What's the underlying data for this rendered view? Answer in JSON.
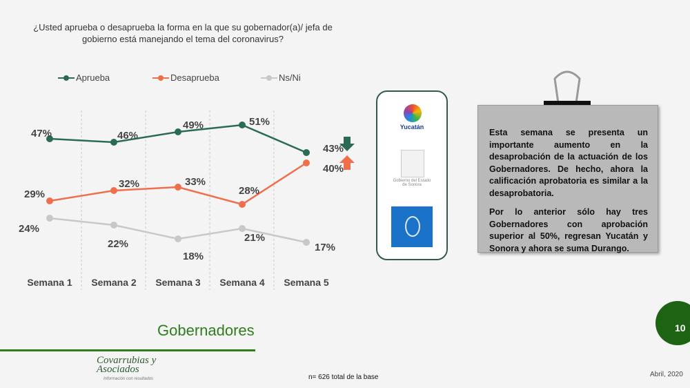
{
  "chart_data": {
    "type": "line",
    "title": "¿Usted aprueba o desaprueba la forma en la que su gobernador(a)/ jefa de gobierno está manejando el tema del coronavirus?",
    "categories": [
      "Semana 1",
      "Semana 2",
      "Semana 3",
      "Semana 4",
      "Semana 5"
    ],
    "series": [
      {
        "name": "Aprueba",
        "color": "#2b6a53",
        "values": [
          47,
          46,
          49,
          51,
          43
        ],
        "labels": [
          "47%",
          "46%",
          "49%",
          "51%",
          "43%"
        ]
      },
      {
        "name": "Desaprueba",
        "color": "#ef6f4c",
        "values": [
          29,
          32,
          33,
          28,
          40
        ],
        "labels": [
          "29%",
          "32%",
          "33%",
          "28%",
          "40%"
        ]
      },
      {
        "name": "Ns/Ni",
        "color": "#c8c8c8",
        "values": [
          24,
          22,
          18,
          21,
          17
        ],
        "labels": [
          "24%",
          "22%",
          "18%",
          "21%",
          "17%"
        ]
      }
    ],
    "legend_position": "top",
    "grid": "vertical dashed separators",
    "trend_arrows": [
      {
        "series": "Aprueba",
        "direction": "down",
        "color": "#2b6a53"
      },
      {
        "series": "Desaprueba",
        "direction": "up",
        "color": "#ef6f4c"
      }
    ]
  },
  "note": {
    "paragraph1": "Esta semana se presenta un importante aumento en la desaprobación de la actuación de los Gobernadores.  De hecho, ahora la calificación aprobatoria es similar a la desaprobatoria.",
    "paragraph2": "Por lo anterior sólo hay tres Gobernadores con aprobación superior al 50%, regresan Yucatán y Sonora y ahora se suma Durango."
  },
  "logos": {
    "yucatan": "Yucatán",
    "sonora": "Gobierno del Estado de Sonora",
    "durango": "Durango"
  },
  "footer": {
    "section_title": "Gobernadores",
    "company_logo": "Covarrubias y Asociados",
    "company_tagline": "Información con resultados",
    "sample_note": "n= 626 total de la base",
    "date": "Abril, 2020",
    "page_number": "10"
  },
  "colors": {
    "brand_green": "#1e6314",
    "title_green": "#2e7d1e"
  }
}
